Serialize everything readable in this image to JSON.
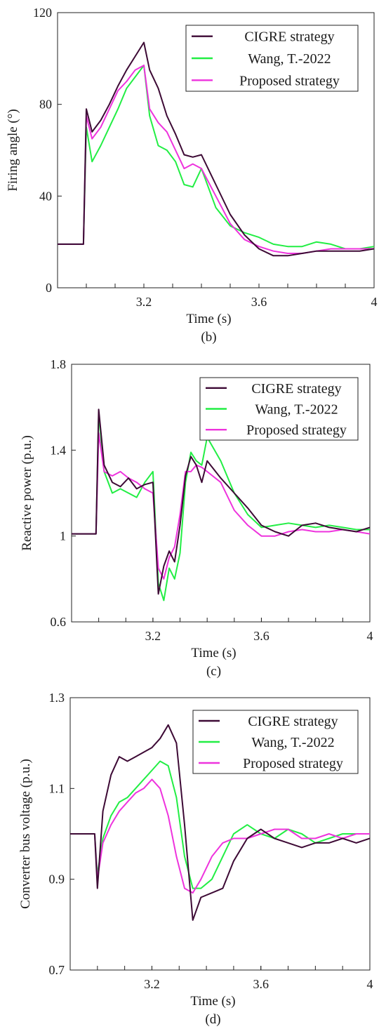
{
  "chart_data": [
    {
      "type": "line",
      "xlabel": "Time (s)",
      "ylabel": "Firing angle (°)",
      "caption": "(b)",
      "xlim": [
        2.9,
        4.0
      ],
      "ylim": [
        0,
        120
      ],
      "xticks": [
        3.2,
        3.6,
        4
      ],
      "xtick_labels": [
        "3.2",
        "3.6",
        "4"
      ],
      "yticks": [
        0,
        40,
        80,
        120
      ],
      "ytick_labels": [
        "0",
        "40",
        "80",
        "120"
      ],
      "legend_position": "top-right",
      "series": [
        {
          "name": "CIGRE strategy",
          "color": "#3d0a35",
          "x": [
            2.9,
            2.95,
            2.99,
            3.0,
            3.02,
            3.05,
            3.08,
            3.11,
            3.14,
            3.17,
            3.2,
            3.22,
            3.25,
            3.28,
            3.31,
            3.34,
            3.37,
            3.4,
            3.45,
            3.5,
            3.55,
            3.6,
            3.65,
            3.7,
            3.75,
            3.8,
            3.85,
            3.9,
            3.95,
            4.0
          ],
          "y": [
            19,
            19,
            19,
            78,
            68,
            73,
            80,
            88,
            95,
            101,
            107,
            95,
            87,
            75,
            67,
            58,
            57,
            58,
            45,
            32,
            23,
            17,
            14,
            14,
            15,
            16,
            16,
            16,
            16,
            17
          ]
        },
        {
          "name": "Wang, T.-2022",
          "color": "#22ee44",
          "x": [
            2.9,
            2.95,
            2.99,
            3.0,
            3.02,
            3.05,
            3.08,
            3.11,
            3.14,
            3.17,
            3.2,
            3.22,
            3.25,
            3.28,
            3.31,
            3.34,
            3.37,
            3.4,
            3.45,
            3.5,
            3.55,
            3.6,
            3.65,
            3.7,
            3.75,
            3.8,
            3.85,
            3.9,
            3.95,
            4.0
          ],
          "y": [
            19,
            19,
            19,
            70,
            55,
            62,
            70,
            78,
            87,
            92,
            97,
            75,
            62,
            60,
            55,
            45,
            44,
            52,
            35,
            27,
            24,
            22,
            19,
            18,
            18,
            20,
            19,
            17,
            17,
            18
          ]
        },
        {
          "name": "Proposed strategy",
          "color": "#ee33dd",
          "x": [
            2.9,
            2.95,
            2.99,
            3.0,
            3.02,
            3.05,
            3.08,
            3.11,
            3.14,
            3.17,
            3.2,
            3.22,
            3.25,
            3.28,
            3.31,
            3.34,
            3.37,
            3.4,
            3.45,
            3.5,
            3.55,
            3.6,
            3.65,
            3.7,
            3.75,
            3.8,
            3.85,
            3.9,
            3.95,
            4.0
          ],
          "y": [
            19,
            19,
            19,
            75,
            65,
            70,
            78,
            86,
            90,
            95,
            97,
            78,
            72,
            68,
            60,
            52,
            54,
            52,
            40,
            28,
            21,
            18,
            16,
            15,
            15,
            16,
            17,
            17,
            17,
            17
          ]
        }
      ]
    },
    {
      "type": "line",
      "xlabel": "Time (s)",
      "ylabel": "Reactive power (p.u.)",
      "caption": "(c)",
      "xlim": [
        2.9,
        4.0
      ],
      "ylim": [
        0.6,
        1.8
      ],
      "xticks": [
        3.2,
        3.6,
        4
      ],
      "xtick_labels": [
        "3.2",
        "3.6",
        "4"
      ],
      "yticks": [
        0.6,
        1.0,
        1.4,
        1.8
      ],
      "ytick_labels": [
        "0.6",
        "1",
        "1.4",
        "1.8"
      ],
      "legend_position": "top-right",
      "series": [
        {
          "name": "CIGRE strategy",
          "color": "#3d0a35",
          "x": [
            2.9,
            2.95,
            2.99,
            3.0,
            3.02,
            3.05,
            3.08,
            3.11,
            3.14,
            3.17,
            3.2,
            3.22,
            3.24,
            3.26,
            3.28,
            3.3,
            3.32,
            3.34,
            3.36,
            3.38,
            3.4,
            3.45,
            3.5,
            3.55,
            3.6,
            3.65,
            3.7,
            3.75,
            3.8,
            3.85,
            3.9,
            3.95,
            4.0
          ],
          "y": [
            1.01,
            1.01,
            1.01,
            1.59,
            1.33,
            1.25,
            1.23,
            1.27,
            1.22,
            1.24,
            1.25,
            0.73,
            0.86,
            0.93,
            0.88,
            1.05,
            1.28,
            1.37,
            1.33,
            1.25,
            1.35,
            1.27,
            1.2,
            1.13,
            1.05,
            1.02,
            1.0,
            1.05,
            1.06,
            1.04,
            1.03,
            1.02,
            1.04
          ]
        },
        {
          "name": "Wang, T.-2022",
          "color": "#22ee44",
          "x": [
            2.9,
            2.95,
            2.99,
            3.0,
            3.02,
            3.05,
            3.08,
            3.11,
            3.14,
            3.17,
            3.2,
            3.22,
            3.24,
            3.26,
            3.28,
            3.3,
            3.32,
            3.34,
            3.36,
            3.38,
            3.4,
            3.45,
            3.5,
            3.55,
            3.6,
            3.65,
            3.7,
            3.75,
            3.8,
            3.85,
            3.9,
            3.95,
            4.0
          ],
          "y": [
            1.01,
            1.01,
            1.01,
            1.57,
            1.3,
            1.2,
            1.22,
            1.2,
            1.18,
            1.25,
            1.3,
            0.78,
            0.7,
            0.85,
            0.8,
            0.92,
            1.25,
            1.39,
            1.35,
            1.33,
            1.46,
            1.35,
            1.2,
            1.1,
            1.04,
            1.05,
            1.06,
            1.05,
            1.04,
            1.05,
            1.04,
            1.03,
            1.03
          ]
        },
        {
          "name": "Proposed strategy",
          "color": "#ee33dd",
          "x": [
            2.9,
            2.95,
            2.99,
            3.0,
            3.02,
            3.05,
            3.08,
            3.11,
            3.14,
            3.17,
            3.2,
            3.22,
            3.24,
            3.26,
            3.28,
            3.3,
            3.32,
            3.34,
            3.36,
            3.38,
            3.4,
            3.45,
            3.5,
            3.55,
            3.6,
            3.65,
            3.7,
            3.75,
            3.8,
            3.85,
            3.9,
            3.95,
            4.0
          ],
          "y": [
            1.01,
            1.01,
            1.01,
            1.48,
            1.3,
            1.28,
            1.3,
            1.27,
            1.25,
            1.22,
            1.2,
            0.85,
            0.8,
            0.9,
            0.95,
            1.1,
            1.3,
            1.3,
            1.33,
            1.32,
            1.3,
            1.25,
            1.12,
            1.05,
            1.0,
            1.0,
            1.02,
            1.03,
            1.02,
            1.02,
            1.03,
            1.02,
            1.01
          ]
        }
      ]
    },
    {
      "type": "line",
      "xlabel": "Time (s)",
      "ylabel": "Converter bus voltage (p.u.)",
      "caption": "(d)",
      "xlim": [
        2.9,
        4.0
      ],
      "ylim": [
        0.7,
        1.3
      ],
      "xticks": [
        3.2,
        3.6,
        4
      ],
      "xtick_labels": [
        "3.2",
        "3.6",
        "4"
      ],
      "yticks": [
        0.7,
        0.9,
        1.1,
        1.3
      ],
      "ytick_labels": [
        "0.7",
        "0.9",
        "1.1",
        "1.3"
      ],
      "legend_position": "top-right",
      "series": [
        {
          "name": "CIGRE strategy",
          "color": "#3d0a35",
          "x": [
            2.9,
            2.95,
            2.99,
            3.0,
            3.02,
            3.05,
            3.08,
            3.11,
            3.14,
            3.17,
            3.2,
            3.23,
            3.26,
            3.29,
            3.32,
            3.35,
            3.38,
            3.42,
            3.46,
            3.5,
            3.55,
            3.6,
            3.65,
            3.7,
            3.75,
            3.8,
            3.85,
            3.9,
            3.95,
            4.0
          ],
          "y": [
            1.0,
            1.0,
            1.0,
            0.88,
            1.05,
            1.13,
            1.17,
            1.16,
            1.17,
            1.18,
            1.19,
            1.21,
            1.24,
            1.2,
            1.02,
            0.81,
            0.86,
            0.87,
            0.88,
            0.94,
            0.99,
            1.01,
            0.99,
            0.98,
            0.97,
            0.98,
            0.98,
            0.99,
            0.98,
            0.99
          ]
        },
        {
          "name": "Wang, T.-2022",
          "color": "#22ee44",
          "x": [
            2.9,
            2.95,
            2.99,
            3.0,
            3.02,
            3.05,
            3.08,
            3.11,
            3.14,
            3.17,
            3.2,
            3.23,
            3.26,
            3.29,
            3.32,
            3.35,
            3.38,
            3.42,
            3.46,
            3.5,
            3.55,
            3.6,
            3.65,
            3.7,
            3.75,
            3.8,
            3.85,
            3.9,
            3.95,
            4.0
          ],
          "y": [
            1.0,
            1.0,
            1.0,
            0.91,
            0.99,
            1.04,
            1.07,
            1.08,
            1.1,
            1.12,
            1.14,
            1.16,
            1.15,
            1.08,
            0.95,
            0.88,
            0.88,
            0.9,
            0.95,
            1.0,
            1.02,
            1.0,
            0.99,
            1.01,
            1.0,
            0.98,
            0.99,
            1.0,
            1.0,
            1.0
          ]
        },
        {
          "name": "Proposed strategy",
          "color": "#ee33dd",
          "x": [
            2.9,
            2.95,
            2.99,
            3.0,
            3.02,
            3.05,
            3.08,
            3.11,
            3.14,
            3.17,
            3.2,
            3.23,
            3.26,
            3.29,
            3.32,
            3.35,
            3.38,
            3.42,
            3.46,
            3.5,
            3.55,
            3.6,
            3.65,
            3.7,
            3.75,
            3.8,
            3.85,
            3.9,
            3.95,
            4.0
          ],
          "y": [
            1.0,
            1.0,
            1.0,
            0.9,
            0.98,
            1.02,
            1.05,
            1.07,
            1.09,
            1.1,
            1.12,
            1.1,
            1.04,
            0.95,
            0.88,
            0.87,
            0.9,
            0.95,
            0.98,
            0.99,
            0.99,
            1.0,
            1.01,
            1.01,
            0.99,
            0.99,
            1.0,
            0.99,
            1.0,
            1.0
          ]
        }
      ]
    }
  ]
}
